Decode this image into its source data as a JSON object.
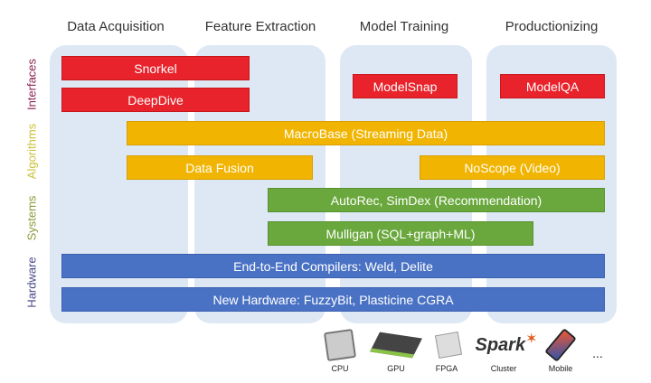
{
  "columns": [
    "Data Acquisition",
    "Feature Extraction",
    "Model Training",
    "Productionizing"
  ],
  "layers": [
    {
      "label": "Interfaces",
      "color": "#8b2252"
    },
    {
      "label": "Algorithms",
      "color": "#c9c23a"
    },
    {
      "label": "Systems",
      "color": "#8a9a3a"
    },
    {
      "label": "Hardware",
      "color": "#4a4a8a"
    }
  ],
  "bars": {
    "snorkel": "Snorkel",
    "deepdive": "DeepDive",
    "modelsnap": "ModelSnap",
    "modelqa": "ModelQA",
    "macrobase": "MacroBase (Streaming Data)",
    "datafusion": "Data Fusion",
    "noscope": "NoScope (Video)",
    "autorec": "AutoRec, SimDex (Recommendation)",
    "mulligan": "Mulligan (SQL+graph+ML)",
    "compilers": "End-to-End Compilers: Weld, Delite",
    "hardware": "New Hardware: FuzzyBit, Plasticine CGRA"
  },
  "platforms": {
    "cpu": "CPU",
    "gpu": "GPU",
    "fpga": "FPGA",
    "cluster": "Cluster",
    "mobile": "Mobile",
    "more": "..."
  },
  "spark_logo": "Spark",
  "colors": {
    "interfaces": "#e8232b",
    "algorithms": "#f1b400",
    "systems": "#6aa83d",
    "hardware": "#4a72c4",
    "column_bg": "#dde8f4"
  }
}
